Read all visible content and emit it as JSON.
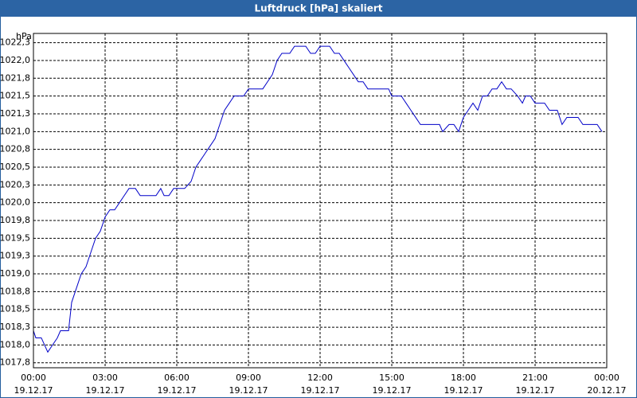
{
  "chart_data": {
    "type": "line",
    "title": "Luftdruck [hPa] skaliert",
    "unit_label": "hPa",
    "xlim": [
      0,
      24
    ],
    "ylim": [
      1017.68,
      1022.38
    ],
    "grid": true,
    "xticks": [
      {
        "value": 0,
        "label": "00:00",
        "date": "19.12.17"
      },
      {
        "value": 3,
        "label": "03:00",
        "date": "19.12.17"
      },
      {
        "value": 6,
        "label": "06:00",
        "date": "19.12.17"
      },
      {
        "value": 9,
        "label": "09:00",
        "date": "19.12.17"
      },
      {
        "value": 12,
        "label": "12:00",
        "date": "19.12.17"
      },
      {
        "value": 15,
        "label": "15:00",
        "date": "19.12.17"
      },
      {
        "value": 18,
        "label": "18:00",
        "date": "19.12.17"
      },
      {
        "value": 21,
        "label": "21:00",
        "date": "19.12.17"
      },
      {
        "value": 24,
        "label": "00:00",
        "date": "20.12.17"
      }
    ],
    "yticks": [
      {
        "value": 1017.75,
        "label": "1017,8"
      },
      {
        "value": 1018,
        "label": "1018,0"
      },
      {
        "value": 1018.25,
        "label": "1018,3"
      },
      {
        "value": 1018.5,
        "label": "1018,5"
      },
      {
        "value": 1018.75,
        "label": "1018,8"
      },
      {
        "value": 1019,
        "label": "1019,0"
      },
      {
        "value": 1019.25,
        "label": "1019,3"
      },
      {
        "value": 1019.5,
        "label": "1019,5"
      },
      {
        "value": 1019.75,
        "label": "1019,8"
      },
      {
        "value": 1020,
        "label": "1020,0"
      },
      {
        "value": 1020.25,
        "label": "1020,3"
      },
      {
        "value": 1020.5,
        "label": "1020,5"
      },
      {
        "value": 1020.75,
        "label": "1020,8"
      },
      {
        "value": 1021,
        "label": "1021,0"
      },
      {
        "value": 1021.25,
        "label": "1021,3"
      },
      {
        "value": 1021.5,
        "label": "1021,5"
      },
      {
        "value": 1021.75,
        "label": "1021,8"
      },
      {
        "value": 1022,
        "label": "1022,0"
      },
      {
        "value": 1022.25,
        "label": "1022,3"
      }
    ],
    "series": [
      {
        "color": "#0000c8",
        "x": [
          0,
          0.1,
          0.33,
          0.6,
          0.8,
          1,
          1.13,
          1.47,
          1.6,
          1.8,
          2,
          2.2,
          2.4,
          2.6,
          2.8,
          3,
          3.2,
          3.4,
          3.6,
          3.8,
          4,
          4.27,
          4.47,
          5.13,
          5.33,
          5.47,
          5.67,
          5.87,
          6.33,
          6.6,
          6.8,
          7,
          7.2,
          7.4,
          7.6,
          7.8,
          8,
          8.2,
          8.4,
          8.8,
          9,
          9.6,
          9.8,
          10,
          10.2,
          10.4,
          10.73,
          10.93,
          11.4,
          11.6,
          11.8,
          12,
          12.4,
          12.6,
          12.8,
          13,
          13.2,
          13.4,
          13.6,
          13.8,
          14,
          14.87,
          15,
          15.4,
          15.6,
          15.8,
          16,
          16.2,
          17,
          17.13,
          17.4,
          17.6,
          17.8,
          18,
          18.2,
          18.4,
          18.6,
          18.8,
          19,
          19.2,
          19.4,
          19.6,
          19.8,
          20,
          20.27,
          20.47,
          20.6,
          20.8,
          21,
          21.4,
          21.6,
          21.93,
          22.13,
          22.33,
          22.8,
          23,
          23.6,
          23.8
        ],
        "values": [
          1018.2,
          1018.1,
          1018.1,
          1017.9,
          1018.0,
          1018.1,
          1018.2,
          1018.2,
          1018.6,
          1018.8,
          1019.0,
          1019.1,
          1019.3,
          1019.5,
          1019.6,
          1019.8,
          1019.9,
          1019.9,
          1020.0,
          1020.1,
          1020.2,
          1020.2,
          1020.1,
          1020.1,
          1020.2,
          1020.1,
          1020.1,
          1020.2,
          1020.2,
          1020.3,
          1020.5,
          1020.6,
          1020.7,
          1020.8,
          1020.9,
          1021.1,
          1021.3,
          1021.4,
          1021.5,
          1021.5,
          1021.6,
          1021.6,
          1021.7,
          1021.8,
          1022.0,
          1022.1,
          1022.1,
          1022.2,
          1022.2,
          1022.1,
          1022.1,
          1022.2,
          1022.2,
          1022.1,
          1022.1,
          1022.0,
          1021.9,
          1021.8,
          1021.7,
          1021.7,
          1021.6,
          1021.6,
          1021.5,
          1021.5,
          1021.4,
          1021.3,
          1021.2,
          1021.1,
          1021.1,
          1021.0,
          1021.1,
          1021.1,
          1021.0,
          1021.2,
          1021.3,
          1021.4,
          1021.3,
          1021.5,
          1021.5,
          1021.6,
          1021.6,
          1021.7,
          1021.6,
          1021.6,
          1021.5,
          1021.4,
          1021.5,
          1021.5,
          1021.4,
          1021.4,
          1021.3,
          1021.3,
          1021.1,
          1021.2,
          1021.2,
          1021.1,
          1021.1,
          1021.0
        ]
      }
    ]
  }
}
